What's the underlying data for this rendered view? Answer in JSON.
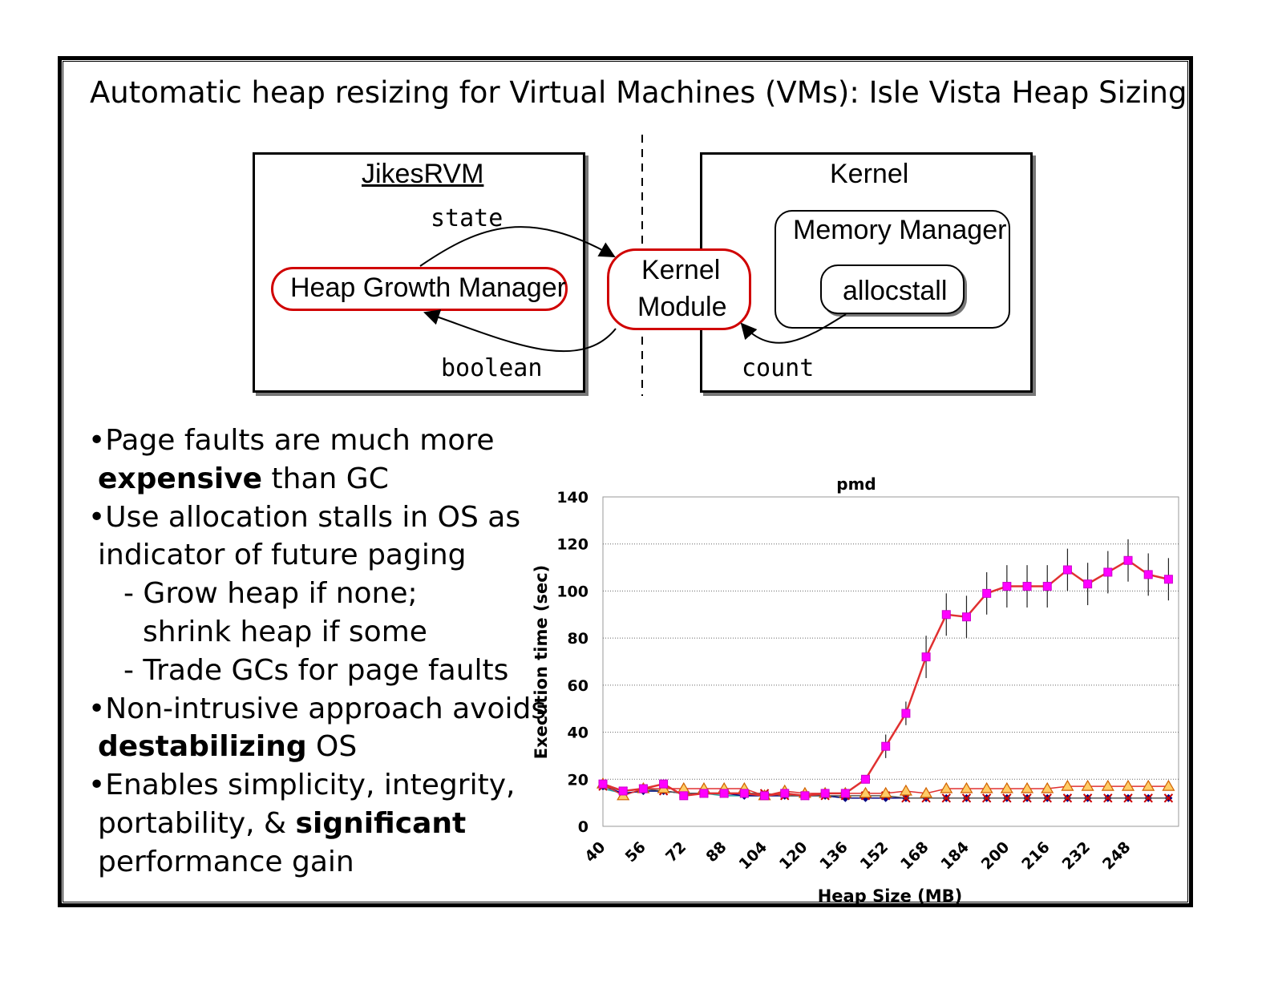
{
  "slide": {
    "title": "Automatic heap resizing for Virtual Machines (VMs): Isle Vista Heap Sizing"
  },
  "diagram": {
    "left_box_title": "JikesRVM",
    "heap_growth_manager": "Heap Growth Manager",
    "kernel_module_line1": "Kernel",
    "kernel_module_line2": "Module",
    "right_box_title": "Kernel",
    "memory_manager": "Memory Manager",
    "allocstall": "allocstall",
    "edge_state": "state",
    "edge_boolean": "boolean",
    "edge_count": "count",
    "accent_color": "#d00000"
  },
  "bullets": [
    {
      "line1": "•Page faults are much more",
      "line2_bold": "expensive",
      "line2_rest": " than GC"
    },
    {
      "line1": "•Use allocation stalls in OS as",
      "line2": "indicator of future paging"
    },
    {
      "sub1": "- Grow heap if none;",
      "sub1b": "shrink heap if some",
      "sub2": "- Trade GCs for page faults"
    },
    {
      "line1": "•Non-intrusive approach avoids",
      "line2_bold": "destabilizing",
      "line2_rest": " OS"
    },
    {
      "line1": "•Enables simplicity, integrity,",
      "line2_pre": "portability, & ",
      "line2_bold": "significant",
      "line3": "performance gain"
    }
  ],
  "chart_data": {
    "type": "line",
    "title": "pmd",
    "xlabel": "Heap Size (MB)",
    "ylabel": "Execution time (sec)",
    "ylim": [
      0,
      140
    ],
    "yticks": [
      0,
      20,
      40,
      60,
      80,
      100,
      120,
      140
    ],
    "xtick_labels": [
      "40",
      "56",
      "72",
      "88",
      "104",
      "120",
      "136",
      "152",
      "168",
      "184",
      "200",
      "216",
      "232",
      "248"
    ],
    "x": [
      40,
      48,
      56,
      64,
      72,
      80,
      88,
      96,
      104,
      112,
      120,
      128,
      136,
      144,
      152,
      160,
      168,
      176,
      184,
      192,
      200,
      208,
      216,
      224,
      232,
      240,
      248,
      256,
      264
    ],
    "series": [
      {
        "marker": "square",
        "color": "#ff00ff",
        "line_color": "#e03030",
        "values": [
          18,
          15,
          16,
          18,
          13,
          14,
          14,
          14,
          13,
          14,
          13,
          14,
          14,
          20,
          34,
          48,
          72,
          90,
          89,
          99,
          102,
          102,
          102,
          109,
          103,
          108,
          113,
          107,
          105
        ]
      },
      {
        "marker": "triangle",
        "color": "#ffcc66",
        "line_color": "#e03030",
        "values": [
          18,
          13,
          16,
          16,
          16,
          16,
          16,
          16,
          13,
          15,
          14,
          14,
          14,
          14,
          14,
          15,
          14,
          16,
          16,
          16,
          16,
          16,
          16,
          17,
          17,
          17,
          17,
          17,
          17
        ]
      },
      {
        "marker": "x",
        "color": "#cc0000",
        "line_color": "#555555",
        "values": [
          17,
          15,
          16,
          15,
          14,
          14,
          14,
          14,
          14,
          13,
          13,
          13,
          13,
          13,
          13,
          12,
          12,
          12,
          12,
          12,
          12,
          12,
          12,
          12,
          12,
          12,
          12,
          12,
          12
        ]
      },
      {
        "marker": "diamond",
        "color": "#000080",
        "line_color": "#000080",
        "values": [
          17,
          14,
          15,
          15,
          14,
          14,
          14,
          13,
          13,
          13,
          13,
          13,
          12,
          12,
          12,
          12,
          12,
          12,
          12,
          12,
          12,
          12,
          12,
          12,
          12,
          12,
          12,
          12,
          12
        ]
      },
      {
        "marker": "none",
        "color": "#20a0a0",
        "line_color": "#20a0a0",
        "values": [
          16,
          14,
          15,
          15,
          14,
          14,
          13,
          13,
          13,
          13,
          13,
          13,
          12,
          12,
          12,
          12,
          12,
          12,
          12,
          12,
          12,
          12,
          12,
          12,
          12,
          12,
          12,
          12,
          12
        ]
      }
    ],
    "error_bars_on": "square series",
    "grid": "dotted horizontal"
  }
}
